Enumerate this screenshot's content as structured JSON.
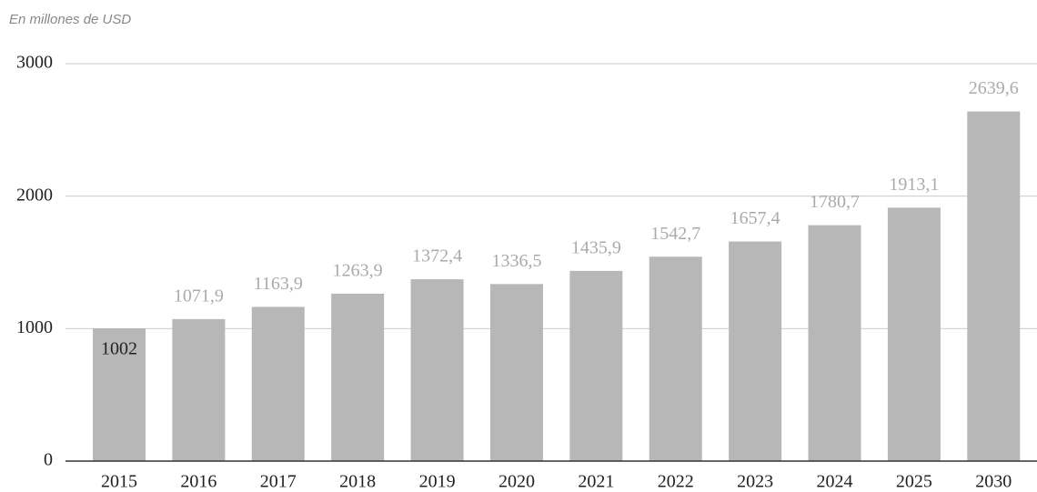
{
  "chart_data": {
    "type": "bar",
    "subtitle": "En millones de USD",
    "categories": [
      "2015",
      "2016",
      "2017",
      "2018",
      "2019",
      "2020",
      "2021",
      "2022",
      "2023",
      "2024",
      "2025",
      "2030"
    ],
    "values": [
      1002,
      1071.9,
      1163.9,
      1263.9,
      1372.4,
      1336.5,
      1435.9,
      1542.7,
      1657.4,
      1780.7,
      1913.1,
      2639.6
    ],
    "value_labels": [
      "1002",
      "1071,9",
      "1163,9",
      "1263,9",
      "1372,4",
      "1336,5",
      "1435,9",
      "1542,7",
      "1657,4",
      "1780,7",
      "1913,1",
      "2639,6"
    ],
    "color": "#b7b7b7",
    "ylim": [
      0,
      3000
    ],
    "yticks": [
      0,
      1000,
      2000,
      3000
    ],
    "grid": true
  }
}
